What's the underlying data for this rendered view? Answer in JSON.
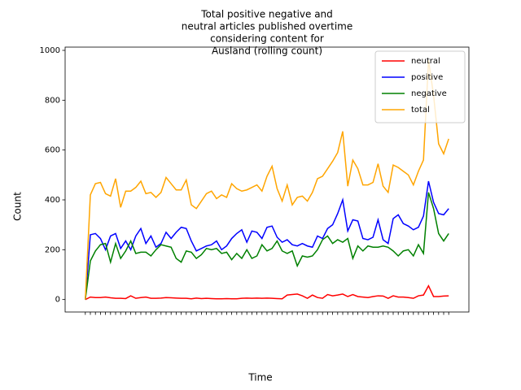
{
  "chart_data": {
    "type": "line",
    "title": [
      "Total positive negative and",
      "neutral articles published overtime",
      "considering content for",
      "Ausland (rolling count)"
    ],
    "xlabel": "Time",
    "ylabel": "Count",
    "categories": [
      null,
      null,
      null,
      null,
      null,
      null,
      null,
      null,
      null,
      null,
      null,
      null,
      null,
      null,
      null,
      null,
      null,
      null,
      null,
      null,
      null,
      null,
      null,
      null,
      null,
      null,
      null,
      null,
      null,
      null,
      null,
      null,
      null,
      null,
      null,
      null,
      null,
      null,
      null,
      null,
      null,
      null,
      null,
      null,
      null,
      null,
      null,
      null,
      null,
      null,
      null,
      null,
      null,
      null,
      null,
      null,
      null,
      null,
      null,
      null,
      null,
      null,
      null,
      null,
      null,
      null,
      null,
      null,
      null,
      null,
      null,
      null,
      null
    ],
    "series": [
      {
        "name": "neutral",
        "color": "#ff0000",
        "values": [
          0,
          10,
          8,
          8,
          10,
          7,
          5,
          5,
          4,
          15,
          5,
          8,
          10,
          5,
          5,
          6,
          8,
          7,
          6,
          5,
          5,
          3,
          6,
          4,
          5,
          4,
          3,
          3,
          4,
          3,
          3,
          5,
          6,
          5,
          6,
          5,
          6,
          5,
          4,
          3,
          18,
          20,
          22,
          15,
          5,
          18,
          8,
          5,
          20,
          15,
          18,
          22,
          12,
          20,
          12,
          10,
          8,
          12,
          15,
          14,
          5,
          15,
          10,
          10,
          8,
          5,
          15,
          18,
          55,
          12,
          12,
          14,
          15
        ]
      },
      {
        "name": "positive",
        "color": "#0000ff",
        "values": [
          0,
          260,
          265,
          245,
          200,
          255,
          265,
          205,
          235,
          200,
          255,
          285,
          225,
          255,
          210,
          225,
          270,
          245,
          270,
          290,
          285,
          235,
          195,
          205,
          215,
          220,
          235,
          200,
          215,
          245,
          265,
          280,
          230,
          275,
          270,
          245,
          290,
          295,
          250,
          230,
          240,
          220,
          215,
          225,
          215,
          210,
          255,
          245,
          285,
          300,
          345,
          400,
          275,
          320,
          315,
          245,
          240,
          250,
          320,
          240,
          225,
          325,
          340,
          305,
          295,
          280,
          290,
          335,
          475,
          390,
          345,
          340,
          365
        ]
      },
      {
        "name": "negative",
        "color": "#008000",
        "values": [
          0,
          155,
          195,
          220,
          225,
          150,
          225,
          165,
          195,
          235,
          185,
          190,
          190,
          175,
          200,
          220,
          215,
          210,
          165,
          150,
          195,
          190,
          165,
          180,
          205,
          200,
          205,
          185,
          190,
          160,
          185,
          165,
          200,
          165,
          175,
          220,
          195,
          205,
          235,
          195,
          185,
          195,
          135,
          175,
          170,
          175,
          200,
          240,
          255,
          225,
          240,
          230,
          245,
          165,
          215,
          195,
          215,
          210,
          210,
          215,
          210,
          195,
          175,
          195,
          200,
          175,
          220,
          185,
          430,
          365,
          265,
          235,
          265
        ]
      },
      {
        "name": "total",
        "color": "#ffa500",
        "values": [
          0,
          420,
          465,
          470,
          425,
          415,
          485,
          370,
          435,
          435,
          450,
          475,
          425,
          430,
          410,
          430,
          490,
          465,
          440,
          440,
          480,
          380,
          365,
          395,
          425,
          435,
          405,
          420,
          410,
          465,
          445,
          435,
          440,
          450,
          460,
          435,
          495,
          535,
          445,
          395,
          460,
          380,
          410,
          415,
          395,
          430,
          485,
          495,
          525,
          555,
          590,
          675,
          455,
          560,
          525,
          460,
          460,
          470,
          545,
          455,
          430,
          540,
          530,
          515,
          500,
          460,
          515,
          560,
          960,
          820,
          625,
          585,
          645
        ]
      }
    ],
    "ylim": [
      -50,
      1013
    ],
    "yticks": [
      0,
      200,
      400,
      600,
      800,
      1000
    ],
    "grid": false,
    "legend": "upper right"
  }
}
